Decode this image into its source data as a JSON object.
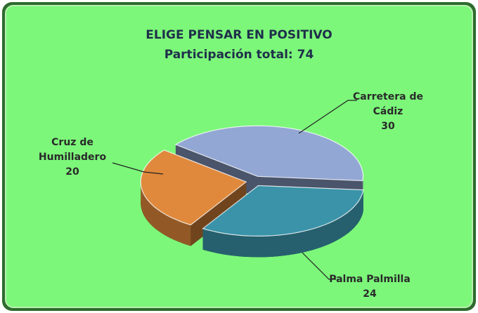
{
  "chart_data": {
    "type": "pie",
    "title": "ELIGE PENSAR EN POSITIVO",
    "subtitle": "Participación total: 74",
    "categories": [
      "Carretera de Cádiz",
      "Palma Palmilla",
      "Cruz de Humilladero"
    ],
    "values": [
      30,
      24,
      20
    ],
    "colors": [
      "#93a7d4",
      "#3a93a9",
      "#e0893c"
    ]
  }
}
